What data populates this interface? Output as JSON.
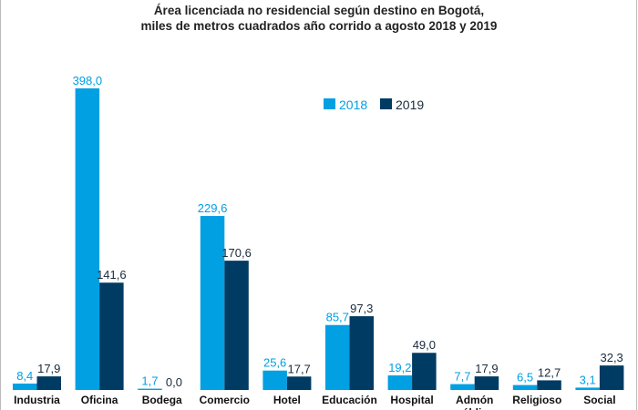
{
  "chart_data": {
    "type": "bar",
    "title": "Área licenciada no residencial según destino en Bogotá,",
    "subtitle": "miles de metros cuadrados año corrido a agosto 2018 y 2019",
    "categories": [
      "Industria",
      "Oficina",
      "Bodega",
      "Comercio",
      "Hotel",
      "Educación",
      "Hospital",
      "Admón pública",
      "Religioso",
      "Social"
    ],
    "series": [
      {
        "name": "2018",
        "color": "#00A0E3",
        "values": [
          8.4,
          398.0,
          1.7,
          229.6,
          25.6,
          85.7,
          19.2,
          7.7,
          6.5,
          3.1
        ],
        "labels": [
          "8,4",
          "398,0",
          "1,7",
          "229,6",
          "25,6",
          "85,7",
          "19,2",
          "7,7",
          "6,5",
          "3,1"
        ]
      },
      {
        "name": "2019",
        "color": "#003B63",
        "values": [
          17.9,
          141.6,
          0.0,
          170.6,
          17.7,
          97.3,
          49.0,
          17.9,
          12.7,
          32.3
        ],
        "labels": [
          "17,9",
          "141,6",
          "0,0",
          "170,6",
          "17,7",
          "97,3",
          "49,0",
          "17,9",
          "12,7",
          "32,3"
        ]
      }
    ],
    "ylim": [
      0,
      400
    ],
    "grid": false,
    "legend": "top-center"
  }
}
